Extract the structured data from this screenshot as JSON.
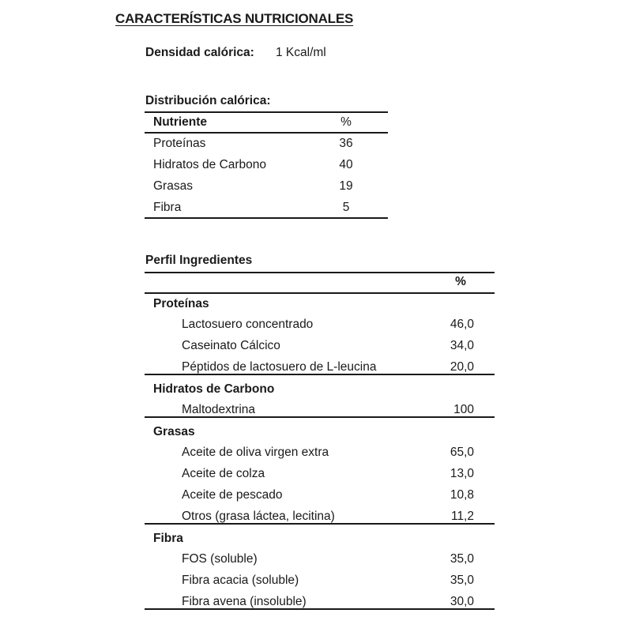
{
  "title": "CARACTERÍSTICAS NUTRICIONALES",
  "density": {
    "label": "Densidad calórica:",
    "value": "1 Kcal/ml"
  },
  "distribution": {
    "heading": "Distribución calórica:",
    "columns": [
      "Nutriente",
      "%"
    ],
    "rows": [
      {
        "name": "Proteínas",
        "value": "36"
      },
      {
        "name": "Hidratos de Carbono",
        "value": "40"
      },
      {
        "name": "Grasas",
        "value": "19"
      },
      {
        "name": "Fibra",
        "value": "5"
      }
    ]
  },
  "ingredients": {
    "heading": "Perfil Ingredientes",
    "percent_header": "%",
    "groups": [
      {
        "name": "Proteínas",
        "items": [
          {
            "name": "Lactosuero concentrado",
            "value": "46,0"
          },
          {
            "name": "Caseinato Cálcico",
            "value": "34,0"
          },
          {
            "name": "Péptidos de lactosuero de L-leucina",
            "value": "20,0"
          }
        ]
      },
      {
        "name": "Hidratos de Carbono",
        "items": [
          {
            "name": "Maltodextrina",
            "value": "100"
          }
        ]
      },
      {
        "name": "Grasas",
        "items": [
          {
            "name": "Aceite de oliva virgen extra",
            "value": "65,0"
          },
          {
            "name": "Aceite de colza",
            "value": "13,0"
          },
          {
            "name": "Aceite de pescado",
            "value": "10,8"
          },
          {
            "name": "Otros (grasa láctea, lecitina)",
            "value": "11,2"
          }
        ]
      },
      {
        "name": "Fibra",
        "items": [
          {
            "name": "FOS (soluble)",
            "value": "35,0"
          },
          {
            "name": "Fibra acacia (soluble)",
            "value": "35,0"
          },
          {
            "name": "Fibra avena (insoluble)",
            "value": "30,0"
          }
        ]
      }
    ]
  }
}
